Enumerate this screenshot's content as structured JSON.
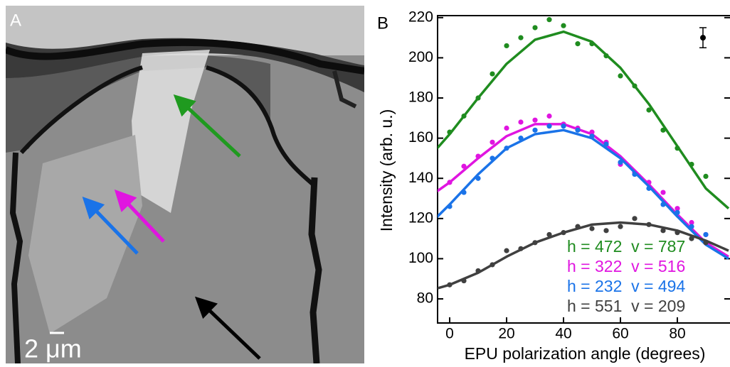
{
  "panel_a": {
    "label": "A",
    "scale_bar": "2 μm"
  },
  "chart_data": {
    "type": "scatter",
    "panel_label": "B",
    "x_label": "EPU polarization angle (degrees)",
    "y_label": "Intensity (arb. u.)",
    "xlim": [
      -4.25,
      98.5
    ],
    "ylim": [
      68,
      221
    ],
    "xticks": [
      0,
      20,
      40,
      60,
      80
    ],
    "yticks": [
      80,
      100,
      120,
      140,
      160,
      180,
      200,
      220
    ],
    "x": [
      0,
      5,
      10,
      15,
      20,
      25,
      30,
      35,
      40,
      45,
      50,
      55,
      60,
      65,
      70,
      75,
      80,
      85,
      90
    ],
    "fit_x": [
      -5,
      0,
      10,
      20,
      30,
      40,
      50,
      60,
      70,
      80,
      90,
      98
    ],
    "series": [
      {
        "name": "h = 472  v = 787",
        "color": "#1f8c1f",
        "values": [
          163,
          171,
          180,
          192,
          206,
          210,
          215,
          219,
          216,
          207,
          207,
          201,
          191,
          186,
          174,
          164,
          155,
          147,
          141
        ],
        "fit": [
          154,
          162,
          180,
          197,
          209,
          213,
          208,
          195,
          177,
          156,
          135,
          125
        ]
      },
      {
        "name": "h = 322  v = 516",
        "color": "#e015e0",
        "values": [
          138,
          146,
          151,
          158,
          165,
          168,
          169,
          171,
          167,
          165,
          163,
          158,
          147,
          143,
          138,
          133,
          125,
          118,
          112
        ],
        "fit": [
          133,
          138,
          150,
          161,
          167,
          167,
          162,
          151,
          137,
          122,
          108,
          101
        ]
      },
      {
        "name": "h = 232  v = 494",
        "color": "#1a73e8",
        "values": [
          126,
          133,
          140,
          150,
          155,
          160,
          164,
          166,
          166,
          164,
          161,
          157,
          148,
          142,
          135,
          127,
          123,
          116,
          112
        ],
        "fit": [
          120,
          127,
          142,
          155,
          162,
          164,
          160,
          150,
          136,
          121,
          107,
          100
        ]
      },
      {
        "name": "h = 551  v = 209",
        "color": "#404040",
        "values": [
          87,
          89,
          94,
          97,
          104,
          105,
          108,
          112,
          113,
          116,
          115,
          114,
          116,
          120,
          117,
          114,
          113,
          110,
          108
        ],
        "fit": [
          85,
          87,
          93,
          101,
          108,
          113,
          117,
          118,
          117,
          114,
          109,
          104
        ]
      }
    ],
    "error_bar": {
      "x": 89,
      "y": 210,
      "error": 5
    }
  }
}
